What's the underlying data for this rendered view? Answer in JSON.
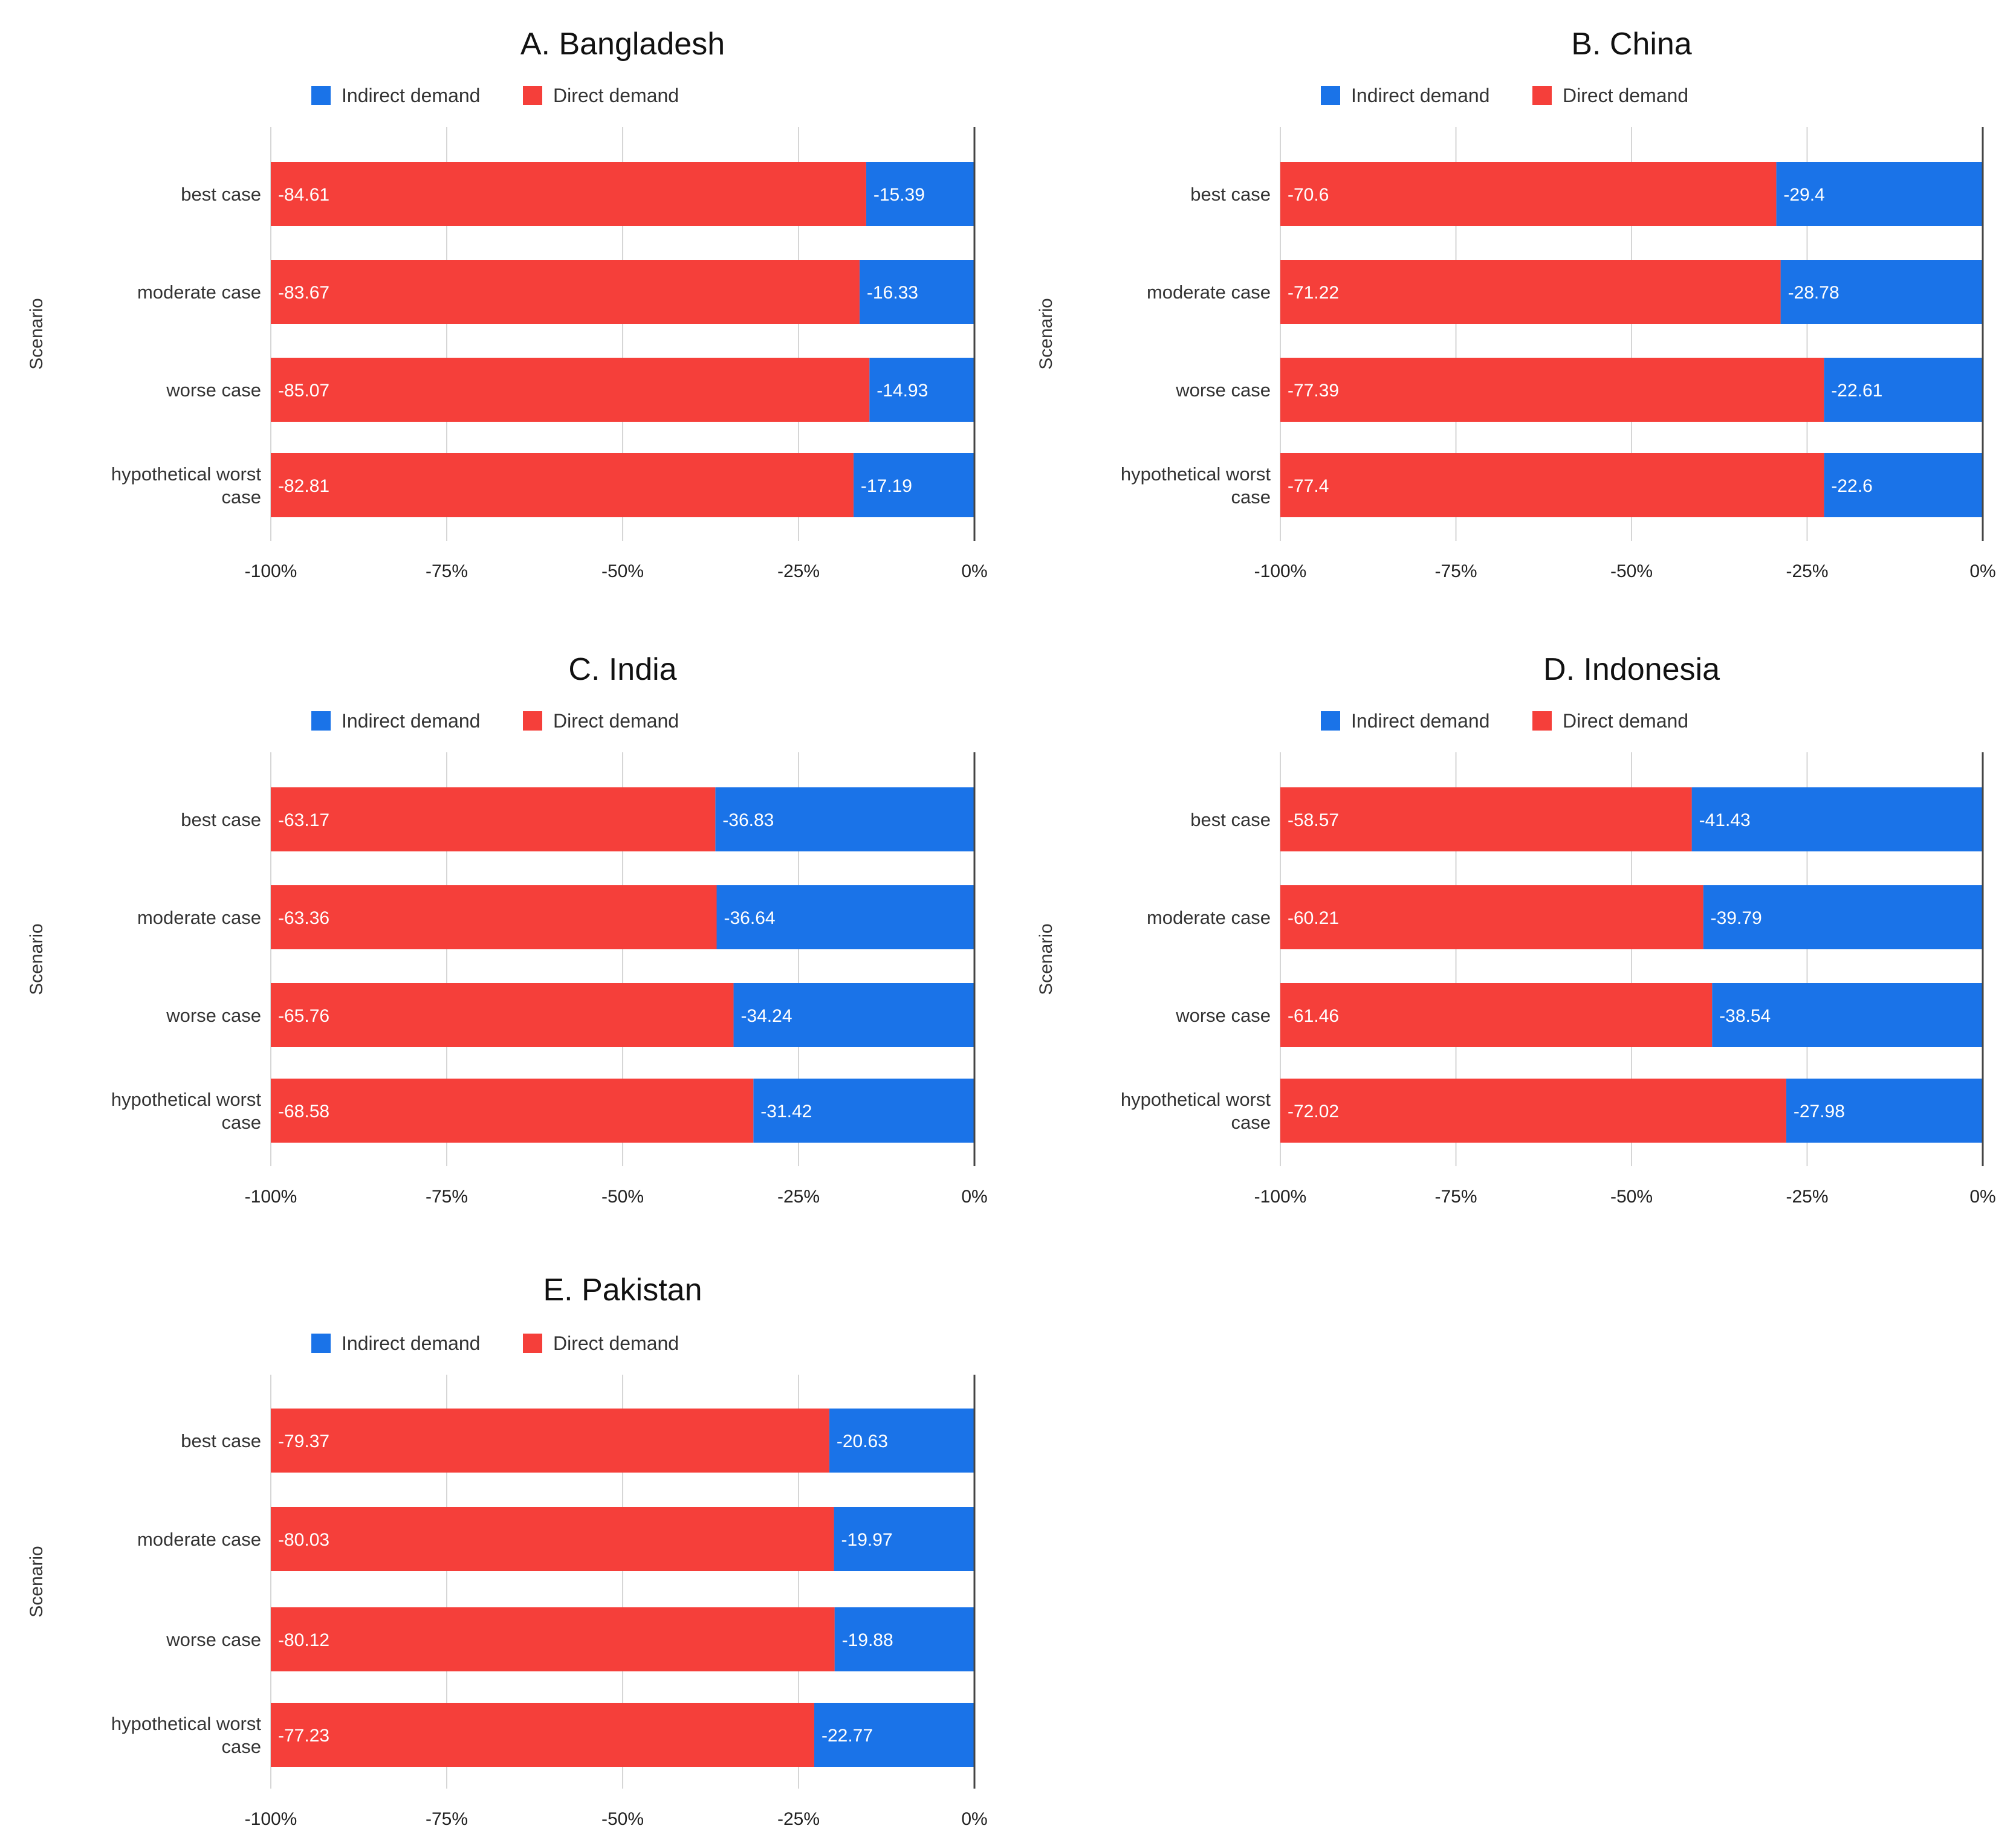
{
  "chart_data": [
    {
      "type": "bar",
      "orientation": "horizontal",
      "stacked": true,
      "title": "A. Bangladesh",
      "ylabel": "Scenario",
      "categories": [
        "best case",
        "moderate case",
        "worse case",
        "hypothetical worst case"
      ],
      "xlim": [
        -100,
        0
      ],
      "xticks": [
        "-100%",
        "-75%",
        "-50%",
        "-25%",
        "0%"
      ],
      "grid": true,
      "legend": "top",
      "series": [
        {
          "name": "Indirect demand",
          "color": "#1a73e8",
          "values": [
            -15.39,
            -16.33,
            -14.93,
            -17.19
          ]
        },
        {
          "name": "Direct demand",
          "color": "#f53f3a",
          "values": [
            -84.61,
            -83.67,
            -85.07,
            -82.81
          ]
        }
      ]
    },
    {
      "type": "bar",
      "orientation": "horizontal",
      "stacked": true,
      "title": "B. China",
      "ylabel": "Scenario",
      "categories": [
        "best case",
        "moderate case",
        "worse case",
        "hypothetical worst case"
      ],
      "xlim": [
        -100,
        0
      ],
      "xticks": [
        "-100%",
        "-75%",
        "-50%",
        "-25%",
        "0%"
      ],
      "grid": true,
      "legend": "top",
      "series": [
        {
          "name": "Indirect demand",
          "color": "#1a73e8",
          "values": [
            -29.4,
            -28.78,
            -22.61,
            -22.6
          ]
        },
        {
          "name": "Direct demand",
          "color": "#f53f3a",
          "values": [
            -70.6,
            -71.22,
            -77.39,
            -77.4
          ]
        }
      ]
    },
    {
      "type": "bar",
      "orientation": "horizontal",
      "stacked": true,
      "title": "C. India",
      "ylabel": "Scenario",
      "categories": [
        "best case",
        "moderate case",
        "worse case",
        "hypothetical worst case"
      ],
      "xlim": [
        -100,
        0
      ],
      "xticks": [
        "-100%",
        "-75%",
        "-50%",
        "-25%",
        "0%"
      ],
      "grid": true,
      "legend": "top",
      "series": [
        {
          "name": "Indirect demand",
          "color": "#1a73e8",
          "values": [
            -36.83,
            -36.64,
            -34.24,
            -31.42
          ]
        },
        {
          "name": "Direct demand",
          "color": "#f53f3a",
          "values": [
            -63.17,
            -63.36,
            -65.76,
            -68.58
          ]
        }
      ]
    },
    {
      "type": "bar",
      "orientation": "horizontal",
      "stacked": true,
      "title": "D. Indonesia",
      "ylabel": "Scenario",
      "categories": [
        "best case",
        "moderate case",
        "worse case",
        "hypothetical worst case"
      ],
      "xlim": [
        -100,
        0
      ],
      "xticks": [
        "-100%",
        "-75%",
        "-50%",
        "-25%",
        "0%"
      ],
      "grid": true,
      "legend": "top",
      "series": [
        {
          "name": "Indirect demand",
          "color": "#1a73e8",
          "values": [
            -41.43,
            -39.79,
            -38.54,
            -27.98
          ]
        },
        {
          "name": "Direct demand",
          "color": "#f53f3a",
          "values": [
            -58.57,
            -60.21,
            -61.46,
            -72.02
          ]
        }
      ]
    },
    {
      "type": "bar",
      "orientation": "horizontal",
      "stacked": true,
      "title": "E. Pakistan",
      "ylabel": "Scenario",
      "categories": [
        "best case",
        "moderate case",
        "worse case",
        "hypothetical worst case"
      ],
      "xlim": [
        -100,
        0
      ],
      "xticks": [
        "-100%",
        "-75%",
        "-50%",
        "-25%",
        "0%"
      ],
      "grid": true,
      "legend": "top",
      "series": [
        {
          "name": "Indirect demand",
          "color": "#1a73e8",
          "values": [
            -20.63,
            -19.97,
            -19.88,
            -22.77
          ]
        },
        {
          "name": "Direct demand",
          "color": "#f53f3a",
          "values": [
            -79.37,
            -80.03,
            -80.12,
            -77.23
          ]
        }
      ]
    }
  ]
}
